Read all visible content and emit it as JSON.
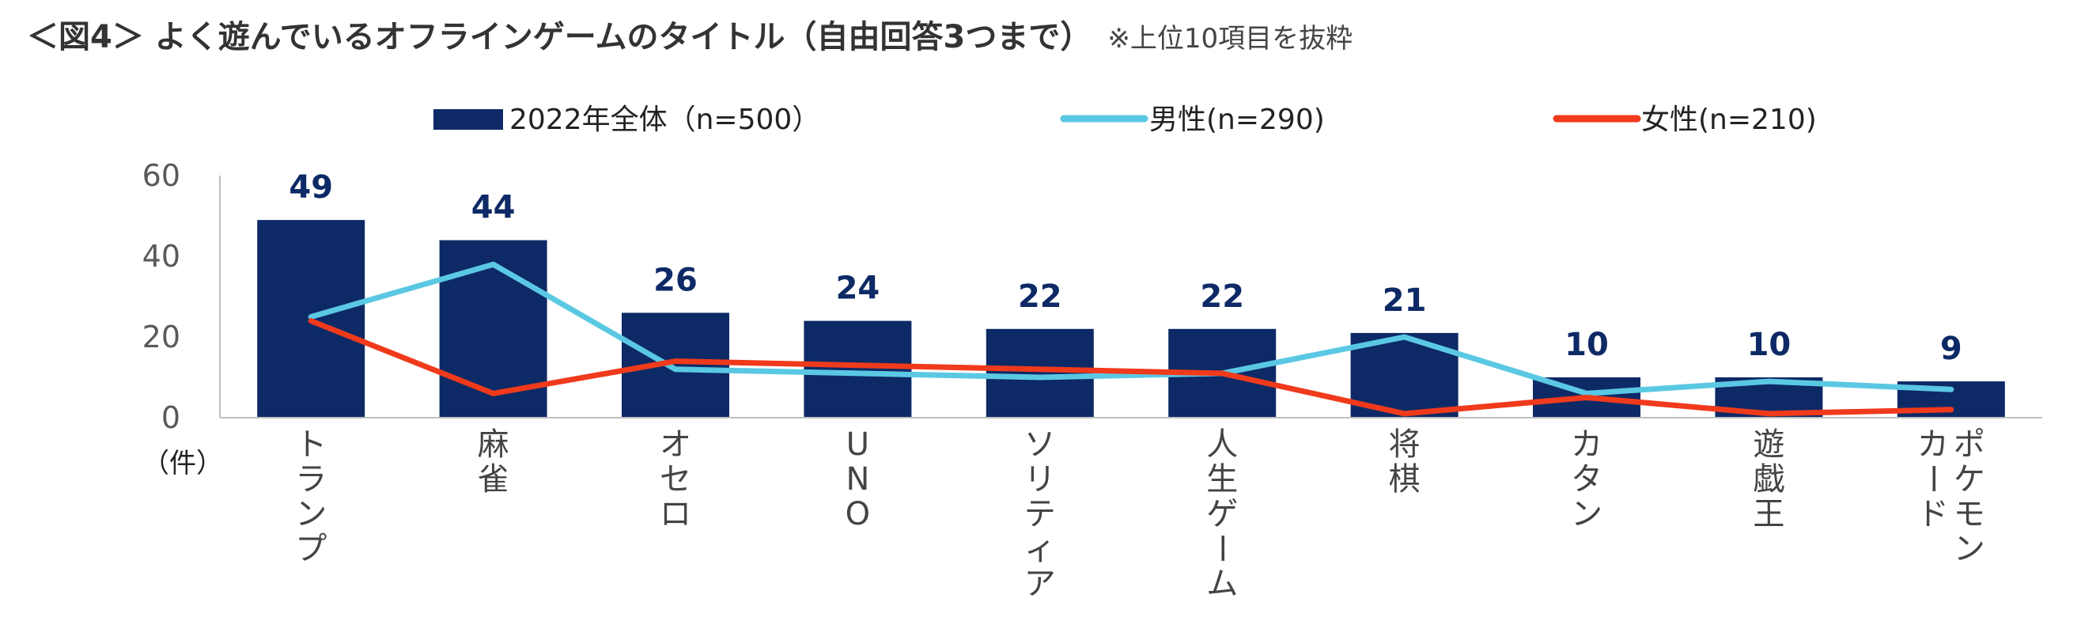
{
  "title": "＜図4＞ よく遊んでいるオフラインゲームのタイトル（自由回答3つまで）",
  "subtitle": "※上位10項目を抜粋",
  "chart_data": {
    "type": "bar",
    "unit_label": "（件）",
    "categories": [
      "トランプ",
      "麻雀",
      "オセロ",
      "UNO",
      "ソリティア",
      "人生ゲーム",
      "将棋",
      "カタン",
      "遊戯王",
      "ポケモンカード"
    ],
    "category_lines": [
      [
        "トランプ"
      ],
      [
        "麻雀"
      ],
      [
        "オセロ"
      ],
      [
        "UNO"
      ],
      [
        "ソリティア"
      ],
      [
        "人生ゲーム"
      ],
      [
        "将棋"
      ],
      [
        "カタン"
      ],
      [
        "遊戯王"
      ],
      [
        "ポケモン",
        "カード"
      ]
    ],
    "series": [
      {
        "name": "2022年全体（n=500）",
        "kind": "bar",
        "color": "#0d2a66",
        "values": [
          49,
          44,
          26,
          24,
          22,
          22,
          21,
          10,
          10,
          9
        ]
      },
      {
        "name": "男性(n=290)",
        "kind": "line",
        "color": "#5bc8e3",
        "values": [
          25,
          38,
          12,
          11,
          10,
          11,
          20,
          6,
          9,
          7
        ]
      },
      {
        "name": "女性(n=210)",
        "kind": "line",
        "color": "#f03a1c",
        "values": [
          24,
          6,
          14,
          13,
          12,
          11,
          1,
          5,
          1,
          2
        ]
      }
    ],
    "data_labels": [
      "49",
      "44",
      "26",
      "24",
      "22",
      "22",
      "21",
      "10",
      "10",
      "9"
    ],
    "yticks": [
      "0",
      "20",
      "40",
      "60"
    ],
    "ylim": [
      0,
      60
    ],
    "grid": false,
    "legend": "top"
  }
}
